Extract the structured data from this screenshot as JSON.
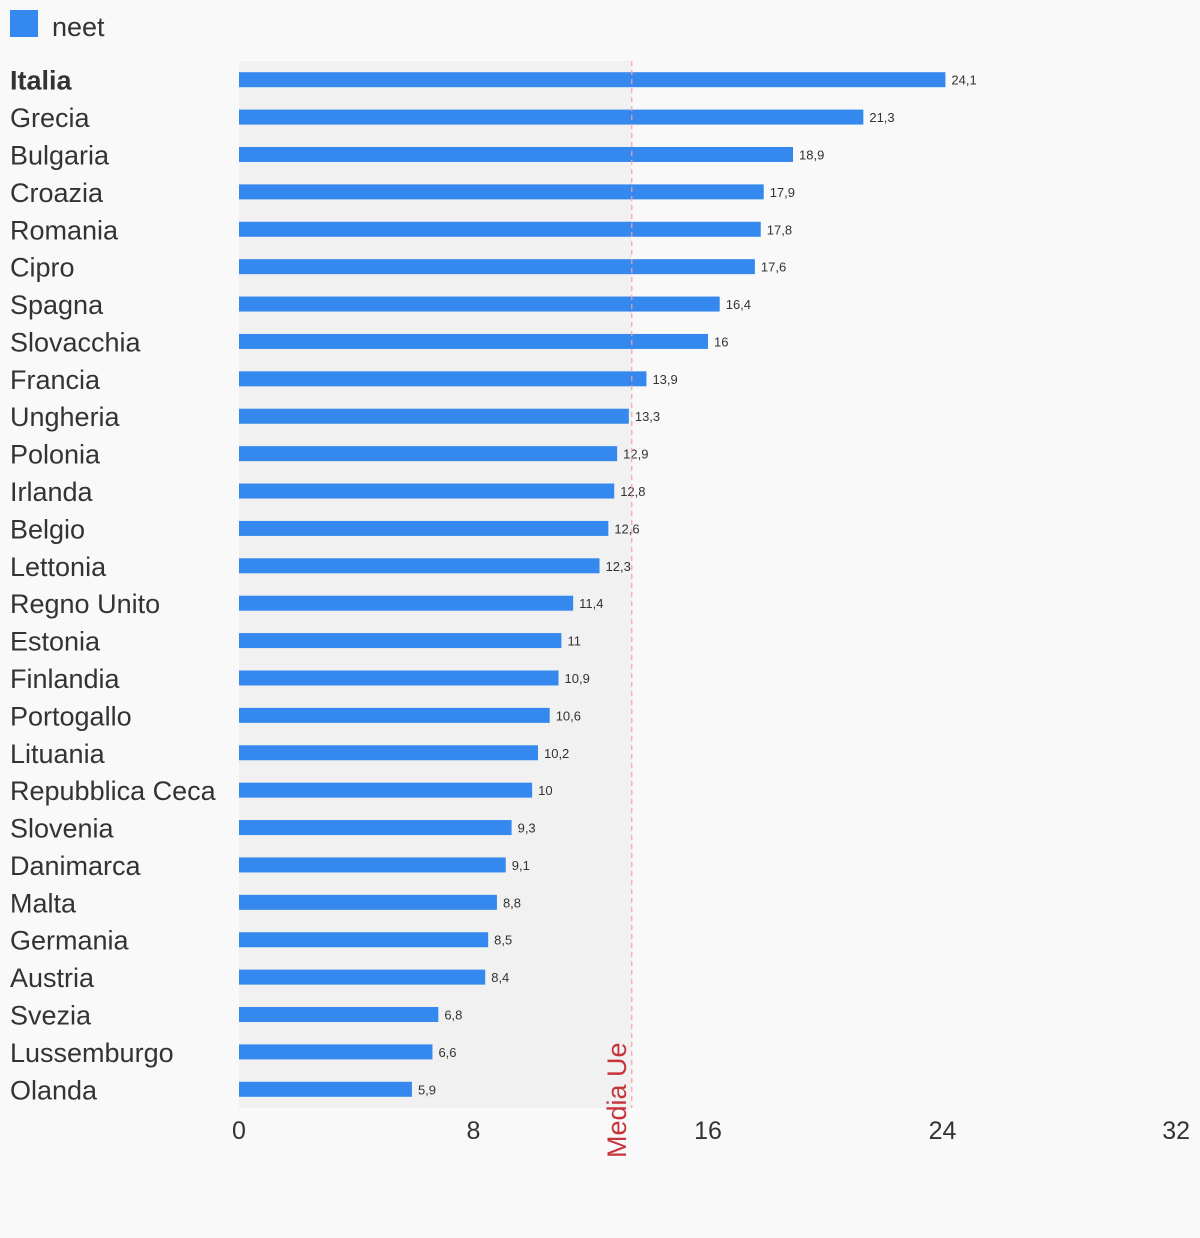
{
  "chart_data": {
    "type": "bar",
    "orientation": "horizontal",
    "legend": [
      {
        "name": "neet",
        "color": "#3589ee"
      }
    ],
    "categories": [
      "Italia",
      "Grecia",
      "Bulgaria",
      "Croazia",
      "Romania",
      "Cipro",
      "Spagna",
      "Slovacchia",
      "Francia",
      "Ungheria",
      "Polonia",
      "Irlanda",
      "Belgio",
      "Lettonia",
      "Regno Unito",
      "Estonia",
      "Finlandia",
      "Portogallo",
      "Lituania",
      "Repubblica Ceca",
      "Slovenia",
      "Danimarca",
      "Malta",
      "Germania",
      "Austria",
      "Svezia",
      "Lussemburgo",
      "Olanda"
    ],
    "highlighted_category": "Italia",
    "series": [
      {
        "name": "neet",
        "color": "#3589ee",
        "values": [
          24.1,
          21.3,
          18.9,
          17.9,
          17.8,
          17.6,
          16.4,
          16,
          13.9,
          13.3,
          12.9,
          12.8,
          12.6,
          12.3,
          11.4,
          11,
          10.9,
          10.6,
          10.2,
          10,
          9.3,
          9.1,
          8.8,
          8.5,
          8.4,
          6.8,
          6.6,
          5.9
        ],
        "value_labels": [
          "24,1",
          "21,3",
          "18,9",
          "17,9",
          "17,8",
          "17,6",
          "16,4",
          "16",
          "13,9",
          "13,3",
          "12,9",
          "12,8",
          "12,6",
          "12,3",
          "11,4",
          "11",
          "10,9",
          "10,6",
          "10,2",
          "10",
          "9,3",
          "9,1",
          "8,8",
          "8,5",
          "8,4",
          "6,8",
          "6,6",
          "5,9"
        ]
      }
    ],
    "xlim": [
      0,
      32
    ],
    "xticks": [
      0,
      8,
      16,
      24,
      32
    ],
    "reference_line": {
      "label": "Media Ue",
      "value": 13.4,
      "color": "#c8323a"
    },
    "shaded_region_color": "#f1f1f1",
    "grid": false
  }
}
